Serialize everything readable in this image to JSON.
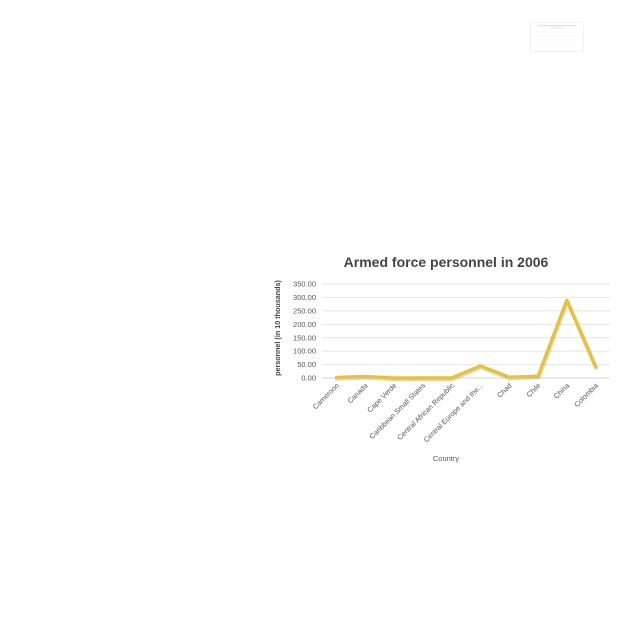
{
  "chart_data": {
    "type": "line",
    "title": "Armed force personnel in 2006",
    "xlabel": "Country",
    "ylabel": "personnel (in 10 thousands)",
    "categories": [
      "Cameroon",
      "Canada",
      "Cape Verde",
      "Caribbean Small States",
      "Central African Republic",
      "Central Europe and the...",
      "Chad",
      "Chile",
      "China",
      "Colombia"
    ],
    "series": [
      {
        "values": [
          2.3,
          6.5,
          0.1,
          0.4,
          0.3,
          45.0,
          3.4,
          7.0,
          290.0,
          42.0
        ],
        "color": "#e8c13a"
      }
    ],
    "ylim": [
      0,
      350
    ],
    "yticks": [
      "0.00",
      "50.00",
      "100.00",
      "150.00",
      "200.00",
      "250.00",
      "300.00",
      "350.00"
    ],
    "grid": true,
    "legend": "none"
  }
}
